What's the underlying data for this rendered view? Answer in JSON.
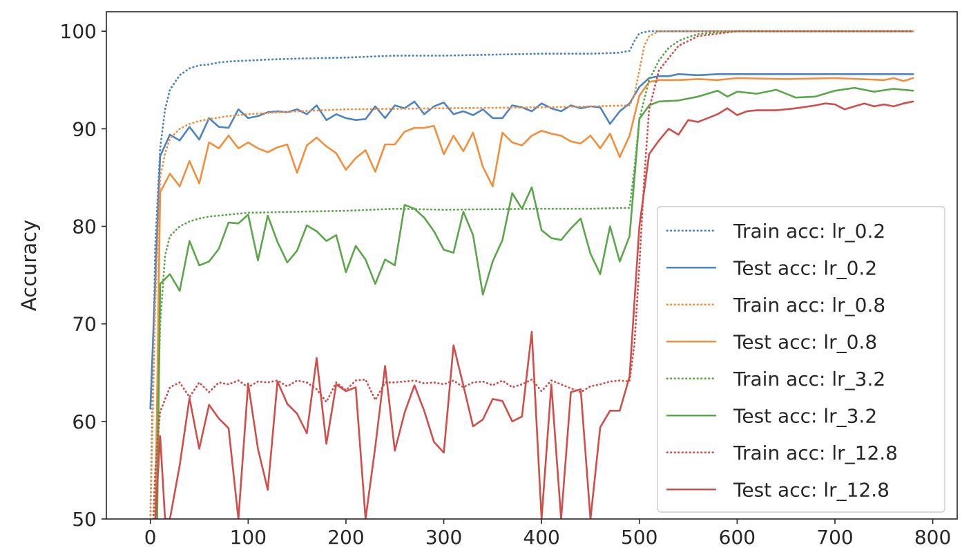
{
  "chart_data": {
    "type": "line",
    "xlabel": "",
    "ylabel": "Accuracy",
    "xlim": [
      -45,
      825
    ],
    "ylim": [
      50,
      102
    ],
    "xticks": [
      "0",
      "100",
      "200",
      "300",
      "400",
      "500",
      "600",
      "700",
      "800"
    ],
    "yticks": [
      "50",
      "60",
      "70",
      "80",
      "90",
      "100"
    ],
    "grid": false,
    "legend_position": "lower-right",
    "colors": {
      "lr_0.2": "#4c83c2",
      "lr_0.8": "#f28e3c",
      "lr_3.2": "#5aa64a",
      "lr_12.8": "#d14d4a"
    },
    "series": [
      {
        "name": "Train acc: lr_0.2",
        "style": "dotted",
        "color": "#4c83c2",
        "x": [
          0,
          5,
          10,
          15,
          20,
          30,
          40,
          50,
          60,
          70,
          80,
          100,
          120,
          150,
          200,
          250,
          300,
          350,
          400,
          450,
          480,
          490,
          495,
          500,
          510,
          520,
          600,
          700,
          780
        ],
        "y": [
          50,
          78,
          88,
          92,
          94,
          95.5,
          96.2,
          96.5,
          96.6,
          96.8,
          96.9,
          97.0,
          97.1,
          97.2,
          97.3,
          97.5,
          97.5,
          97.6,
          97.7,
          97.7,
          97.8,
          98.0,
          99.0,
          99.8,
          100,
          100,
          100,
          100,
          100
        ]
      },
      {
        "name": "Test acc: lr_0.2",
        "style": "solid",
        "color": "#4c83c2",
        "x": [
          0,
          10,
          20,
          30,
          40,
          50,
          60,
          70,
          80,
          90,
          100,
          110,
          120,
          130,
          140,
          150,
          160,
          170,
          180,
          190,
          200,
          210,
          220,
          230,
          240,
          250,
          260,
          270,
          280,
          290,
          300,
          310,
          320,
          330,
          340,
          350,
          360,
          370,
          380,
          390,
          400,
          410,
          420,
          430,
          440,
          450,
          460,
          470,
          480,
          490,
          500,
          510,
          520,
          530,
          540,
          560,
          580,
          600,
          650,
          700,
          780
        ],
        "y": [
          61.3,
          87.2,
          89.4,
          88.8,
          90.2,
          88.9,
          91.1,
          90.2,
          90.1,
          92.0,
          91.1,
          91.3,
          91.7,
          91.8,
          91.7,
          92.0,
          91.5,
          92.4,
          90.9,
          91.5,
          91.1,
          90.9,
          91.0,
          92.3,
          91.1,
          92.4,
          92.1,
          92.8,
          91.5,
          92.3,
          92.7,
          91.5,
          91.8,
          91.4,
          92.0,
          91.1,
          91.1,
          92.4,
          92.2,
          91.8,
          92.6,
          92.1,
          91.8,
          92.4,
          92.1,
          92.3,
          92.2,
          90.5,
          91.8,
          92.6,
          94.3,
          95.2,
          95.4,
          95.4,
          95.6,
          95.5,
          95.6,
          95.6,
          95.6,
          95.6,
          95.6
        ]
      },
      {
        "name": "Train acc: lr_0.8",
        "style": "dotted",
        "color": "#f28e3c",
        "x": [
          0,
          5,
          10,
          15,
          20,
          30,
          40,
          50,
          60,
          80,
          100,
          150,
          200,
          300,
          400,
          450,
          490,
          495,
          500,
          505,
          510,
          520,
          600,
          700,
          780
        ],
        "y": [
          50,
          72,
          85,
          87.5,
          89,
          90,
          90.5,
          90.8,
          91,
          91.3,
          91.5,
          91.8,
          92.0,
          92.1,
          92.2,
          92.3,
          92.4,
          93.5,
          96,
          98.5,
          99.5,
          100,
          100,
          100,
          100
        ]
      },
      {
        "name": "Test acc: lr_0.8",
        "style": "solid",
        "color": "#f28e3c",
        "x": [
          5,
          10,
          20,
          30,
          40,
          50,
          60,
          70,
          80,
          90,
          100,
          110,
          120,
          130,
          140,
          150,
          160,
          170,
          180,
          190,
          200,
          210,
          220,
          230,
          240,
          250,
          260,
          270,
          280,
          290,
          300,
          310,
          320,
          330,
          340,
          350,
          360,
          370,
          380,
          390,
          400,
          410,
          420,
          430,
          440,
          450,
          460,
          470,
          480,
          490,
          500,
          510,
          520,
          540,
          560,
          580,
          600,
          650,
          700,
          750,
          760,
          770,
          780
        ],
        "y": [
          50,
          83.5,
          85.4,
          84.1,
          86.7,
          84.4,
          88.6,
          88.0,
          89.3,
          88.0,
          88.6,
          88.0,
          87.6,
          88.1,
          88.4,
          85.5,
          88.3,
          89.1,
          88.2,
          87.5,
          85.8,
          87.0,
          87.8,
          85.6,
          88.4,
          88.4,
          89.7,
          90.1,
          90.1,
          90.3,
          87.4,
          89.3,
          87.7,
          89.6,
          86.1,
          84.1,
          89.6,
          88.6,
          88.3,
          89.3,
          89.8,
          89.5,
          89.3,
          88.7,
          88.5,
          89.3,
          88.0,
          89.5,
          87.1,
          89.3,
          93.4,
          94.8,
          95.0,
          95.0,
          95.1,
          95.0,
          95.2,
          95.1,
          95.2,
          95.0,
          95.2,
          94.9,
          95.2
        ]
      },
      {
        "name": "Train acc: lr_3.2",
        "style": "dotted",
        "color": "#5aa64a",
        "x": [
          5,
          10,
          15,
          20,
          30,
          40,
          50,
          60,
          80,
          100,
          150,
          200,
          250,
          300,
          400,
          450,
          490,
          495,
          500,
          510,
          520,
          530,
          540,
          550,
          560,
          580,
          600,
          650,
          700,
          780
        ],
        "y": [
          50,
          70,
          77,
          79,
          80,
          80.5,
          80.8,
          81.0,
          81.2,
          81.4,
          81.5,
          81.6,
          81.8,
          81.7,
          81.8,
          81.8,
          81.9,
          86,
          91,
          95,
          97,
          98.3,
          99,
          99.4,
          99.7,
          99.9,
          100,
          100,
          100,
          100
        ]
      },
      {
        "name": "Test acc: lr_3.2",
        "style": "solid",
        "color": "#5aa64a",
        "x": [
          7,
          10,
          20,
          30,
          40,
          50,
          60,
          70,
          80,
          90,
          100,
          110,
          120,
          130,
          140,
          150,
          160,
          170,
          180,
          190,
          200,
          210,
          220,
          230,
          240,
          250,
          260,
          270,
          280,
          290,
          300,
          310,
          320,
          330,
          340,
          350,
          360,
          370,
          380,
          390,
          400,
          410,
          420,
          430,
          440,
          450,
          460,
          470,
          480,
          490,
          500,
          510,
          520,
          540,
          560,
          580,
          590,
          600,
          620,
          640,
          660,
          680,
          700,
          720,
          740,
          760,
          780
        ],
        "y": [
          50,
          74.1,
          75.1,
          73.4,
          78.5,
          76.0,
          76.4,
          77.7,
          80.4,
          80.3,
          81.2,
          76.5,
          81.1,
          78.4,
          76.3,
          77.5,
          80.1,
          79.5,
          78.5,
          79.1,
          75.3,
          78.0,
          76.6,
          74.1,
          76.6,
          76.0,
          82.2,
          81.8,
          80.9,
          79.5,
          77.6,
          77.3,
          81.5,
          79.1,
          73.0,
          76.4,
          78.6,
          83.4,
          81.8,
          84.0,
          79.6,
          78.8,
          78.6,
          79.8,
          80.8,
          77.2,
          75.1,
          80.0,
          76.4,
          79.0,
          91.0,
          92.4,
          92.8,
          92.9,
          93.3,
          93.9,
          93.3,
          93.8,
          93.6,
          94.0,
          93.2,
          93.3,
          93.9,
          94.2,
          93.8,
          94.1,
          93.9
        ]
      },
      {
        "name": "Train acc: lr_12.8",
        "style": "dotted",
        "color": "#d14d4a",
        "x": [
          3,
          5,
          10,
          20,
          30,
          40,
          50,
          60,
          70,
          80,
          90,
          100,
          110,
          120,
          130,
          140,
          150,
          160,
          170,
          180,
          190,
          200,
          210,
          220,
          230,
          240,
          250,
          260,
          270,
          280,
          290,
          300,
          310,
          320,
          330,
          340,
          350,
          360,
          370,
          380,
          390,
          400,
          410,
          420,
          430,
          440,
          450,
          460,
          470,
          480,
          490,
          495,
          500,
          505,
          510,
          520,
          540,
          560,
          600,
          700,
          780
        ],
        "y": [
          50,
          55,
          61,
          63.5,
          64,
          62.5,
          64,
          63,
          64,
          63.8,
          64.2,
          63.5,
          64.1,
          64,
          64.2,
          63.6,
          64.2,
          64,
          63.3,
          62,
          64,
          63.2,
          64.2,
          64.3,
          62.2,
          64,
          64,
          64.1,
          64.2,
          63.9,
          64,
          63.8,
          64.2,
          63.5,
          64,
          64.1,
          63.7,
          64.2,
          63.5,
          63.8,
          64.3,
          63.1,
          64.2,
          63.8,
          63.4,
          63.0,
          63.6,
          63.8,
          64.1,
          64.2,
          64.1,
          68,
          76,
          85,
          92,
          96,
          98.5,
          99.5,
          100,
          100,
          100
        ]
      },
      {
        "name": "Test acc: lr_12.8",
        "style": "solid",
        "color": "#d14d4a",
        "x": [
          5,
          10,
          15,
          20,
          30,
          40,
          50,
          60,
          70,
          80,
          90,
          100,
          110,
          120,
          130,
          140,
          150,
          160,
          170,
          180,
          190,
          200,
          210,
          220,
          230,
          240,
          250,
          260,
          270,
          280,
          290,
          300,
          310,
          320,
          330,
          340,
          350,
          360,
          370,
          380,
          390,
          400,
          410,
          420,
          430,
          440,
          450,
          460,
          470,
          480,
          490,
          500,
          510,
          520,
          530,
          540,
          550,
          560,
          570,
          580,
          590,
          600,
          610,
          620,
          640,
          660,
          680,
          690,
          700,
          710,
          720,
          730,
          740,
          750,
          760,
          770,
          780
        ],
        "y": [
          50,
          58.5,
          50,
          50,
          55.5,
          62.4,
          57.2,
          61.7,
          60.3,
          59.3,
          50,
          63.9,
          57.2,
          53.0,
          64.1,
          61.8,
          60.8,
          58.8,
          66.5,
          57.7,
          63.8,
          63.1,
          63.5,
          50,
          57.4,
          65.7,
          57.0,
          60.9,
          63.7,
          61.1,
          57.9,
          56.8,
          67.8,
          63.7,
          59.5,
          60.2,
          62.3,
          62.1,
          60.0,
          60.5,
          69.2,
          50,
          63.8,
          50,
          63.0,
          63.3,
          50,
          59.4,
          61.1,
          61.1,
          64.6,
          80.0,
          87.4,
          88.8,
          90.0,
          89.4,
          90.9,
          90.7,
          91.1,
          91.5,
          92.1,
          91.4,
          91.8,
          91.9,
          91.9,
          92.1,
          92.4,
          92.6,
          92.5,
          92.0,
          92.3,
          92.6,
          92.3,
          92.5,
          92.3,
          92.6,
          92.8
        ]
      }
    ]
  }
}
